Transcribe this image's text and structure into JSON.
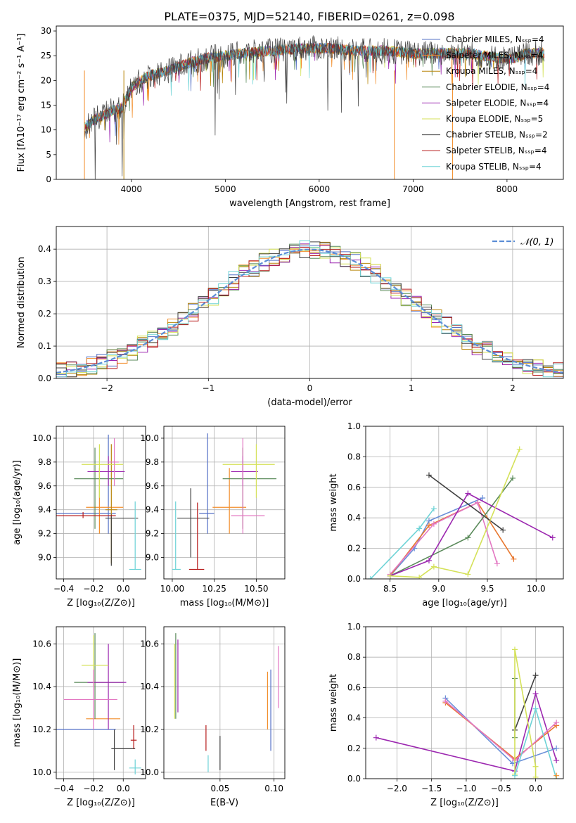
{
  "title": "PLATE=0375, MJD=52140, FIBERID=0261, z=0.098",
  "colors": {
    "chabrier_miles": "#5470c6",
    "salpeter_miles": "#f28e2b",
    "kroupa_miles": "#b8860b",
    "chabrier_elodie": "#5a8a5a",
    "salpeter_elodie": "#9c27b0",
    "kroupa_elodie": "#d4e157",
    "chabrier_stelib": "#404040",
    "salpeter_stelib": "#b71c1c",
    "kroupa_stelib": "#6dd3d6",
    "normal_fit": "#5b8dd6",
    "pink": "#e377c2",
    "blue": "#6a8fd8",
    "orange": "#e8772e"
  },
  "chart_data": [
    {
      "type": "line",
      "name": "spectrum",
      "xlabel": "wavelength [Angstrom, rest frame]",
      "ylabel": "Flux [fλ10⁻¹⁷ erg cm⁻² s⁻¹ A⁻¹]",
      "xlim": [
        3200,
        8600
      ],
      "ylim": [
        0,
        31
      ],
      "xticks": [
        "4000",
        "5000",
        "6000",
        "7000",
        "8000"
      ],
      "yticks": [
        "0",
        "5",
        "10",
        "15",
        "20",
        "25",
        "30"
      ],
      "continuum": {
        "x": [
          3500,
          3600,
          3700,
          3800,
          3900,
          4000,
          4100,
          4200,
          4400,
          4600,
          4800,
          5000,
          5200,
          5500,
          5800,
          6100,
          6400,
          6700,
          7000,
          7300,
          7600,
          7900,
          8100,
          8200,
          8400
        ],
        "y": [
          10.5,
          12,
          13,
          14,
          14.5,
          18.5,
          20,
          21,
          22,
          23.5,
          24.5,
          25,
          25.5,
          26,
          26.5,
          26.5,
          26,
          26,
          25.5,
          25.5,
          25.5,
          24.5,
          24.5,
          25.5,
          25.5
        ]
      },
      "legend_position": "upper right",
      "legend": [
        "Chabrier MILES, Nₛₛₚ=4",
        "Salpeter MILES, Nₛₛₚ=4",
        "Kroupa MILES, Nₛₛₚ=4",
        "Chabrier ELODIE, Nₛₛₚ=4",
        "Salpeter ELODIE, Nₛₛₚ=4",
        "Kroupa ELODIE, Nₛₛₚ=5",
        "Chabrier STELIB, Nₛₛₚ=2",
        "Salpeter STELIB, Nₛₛₚ=4",
        "Kroupa STELIB, Nₛₛₚ=4"
      ]
    },
    {
      "type": "line",
      "name": "residuals",
      "xlabel": "(data-model)/error",
      "ylabel": "Normed distribution",
      "xlim": [
        -2.5,
        2.5
      ],
      "ylim": [
        0,
        0.47
      ],
      "xticks": [
        "−2",
        "−1",
        "0",
        "1",
        "2"
      ],
      "yticks": [
        "0.0",
        "0.1",
        "0.2",
        "0.3",
        "0.4"
      ],
      "grid": true,
      "legend_position": "upper right",
      "legend": [
        "𝒩(0, 1)"
      ],
      "bin_width": 0.1
    },
    {
      "type": "scatter",
      "name": "age-vs-Z",
      "xlabel": "Z [log₁₀(Z/Z⊙)]",
      "ylabel": "age  [log₁₀(age/yr)]",
      "xlim": [
        -0.45,
        0.15
      ],
      "ylim": [
        8.82,
        10.1
      ],
      "xticks": [
        "−0.4",
        "−0.2",
        "0.0"
      ],
      "yticks": [
        "9.0",
        "9.2",
        "9.4",
        "9.6",
        "9.8",
        "10.0"
      ],
      "grid": true,
      "points": [
        {
          "s": "chabrier_miles",
          "x": -0.1,
          "y": 9.37,
          "xlo": -0.45,
          "xhi": -0.05,
          "ylo": 9.2,
          "yhi": 10.03
        },
        {
          "s": "salpeter_miles",
          "x": -0.16,
          "y": 9.42,
          "xlo": -0.25,
          "xhi": -0.0,
          "ylo": 9.2,
          "yhi": 9.75
        },
        {
          "s": "kroupa_miles",
          "x": -0.08,
          "y": 9.4,
          "xlo": -0.12,
          "xhi": -0.04,
          "ylo": 8.95,
          "yhi": 9.95
        },
        {
          "s": "chabrier_elodie",
          "x": -0.19,
          "y": 9.66,
          "xlo": -0.33,
          "xhi": -0.0,
          "ylo": 9.24,
          "yhi": 9.92
        },
        {
          "s": "salpeter_elodie",
          "x": -0.1,
          "y": 9.72,
          "xlo": -0.24,
          "xhi": 0.01,
          "ylo": 9.6,
          "yhi": 9.85
        },
        {
          "s": "kroupa_elodie",
          "x": -0.16,
          "y": 9.78,
          "xlo": -0.28,
          "xhi": -0.0,
          "ylo": 9.5,
          "yhi": 9.95
        },
        {
          "s": "chabrier_stelib",
          "x": -0.08,
          "y": 9.33,
          "xlo": -0.12,
          "xhi": 0.1,
          "ylo": 8.93,
          "yhi": 9.36
        },
        {
          "s": "salpeter_stelib",
          "x": -0.27,
          "y": 9.35,
          "xlo": -0.45,
          "xhi": -0.05,
          "ylo": 9.33,
          "yhi": 9.38
        },
        {
          "s": "kroupa_stelib",
          "x": 0.08,
          "y": 8.9,
          "xlo": 0.04,
          "xhi": 0.12,
          "ylo": 8.9,
          "yhi": 9.47
        },
        {
          "s": "pink",
          "x": -0.06,
          "y": 9.8,
          "xlo": -0.1,
          "xhi": -0.03,
          "ylo": 9.6,
          "yhi": 10.0
        }
      ]
    },
    {
      "type": "scatter",
      "name": "age-vs-mass",
      "xlabel": "mass [log₁₀(M/M⊙)]",
      "ylabel": "",
      "xlim": [
        9.95,
        10.67
      ],
      "ylim": [
        8.82,
        10.1
      ],
      "xticks": [
        "10.00",
        "10.25",
        "10.50"
      ],
      "yticks": [
        "9.0",
        "9.2",
        "9.4",
        "9.6",
        "9.8",
        "10.0"
      ],
      "grid": true,
      "points": [
        {
          "s": "chabrier_miles",
          "x": 10.21,
          "y": 9.37,
          "xlo": 10.16,
          "xhi": 10.25,
          "ylo": 9.2,
          "yhi": 10.04
        },
        {
          "s": "salpeter_miles",
          "x": 10.34,
          "y": 9.42,
          "xlo": 10.24,
          "xhi": 10.44,
          "ylo": 9.2,
          "yhi": 9.75
        },
        {
          "s": "chabrier_elodie",
          "x": 10.42,
          "y": 9.66,
          "xlo": 10.3,
          "xhi": 10.62,
          "ylo": 9.24,
          "yhi": 9.92
        },
        {
          "s": "salpeter_elodie",
          "x": 10.42,
          "y": 9.72,
          "xlo": 10.35,
          "xhi": 10.51,
          "ylo": 9.6,
          "yhi": 9.85
        },
        {
          "s": "kroupa_elodie",
          "x": 10.5,
          "y": 9.78,
          "xlo": 10.3,
          "xhi": 10.61,
          "ylo": 9.5,
          "yhi": 9.95
        },
        {
          "s": "chabrier_stelib",
          "x": 10.11,
          "y": 9.33,
          "xlo": 10.03,
          "xhi": 10.22,
          "ylo": 9.0,
          "yhi": 9.58
        },
        {
          "s": "salpeter_stelib",
          "x": 10.15,
          "y": 8.9,
          "xlo": 10.1,
          "xhi": 10.19,
          "ylo": 8.9,
          "yhi": 9.46
        },
        {
          "s": "kroupa_stelib",
          "x": 10.02,
          "y": 8.9,
          "xlo": 10.0,
          "xhi": 10.05,
          "ylo": 8.9,
          "yhi": 9.47
        },
        {
          "s": "pink",
          "x": 10.42,
          "y": 9.35,
          "xlo": 10.35,
          "xhi": 10.55,
          "ylo": 9.2,
          "yhi": 10.0
        }
      ]
    },
    {
      "type": "line",
      "name": "massweight-vs-age",
      "xlabel": "age  [log₁₀(age/yr)]",
      "ylabel": "mass weight",
      "xlim": [
        8.25,
        10.28
      ],
      "ylim": [
        0,
        1
      ],
      "xticks": [
        "8.5",
        "9.0",
        "9.5",
        "10.0"
      ],
      "yticks": [
        "0.0",
        "0.2",
        "0.4",
        "0.6",
        "0.8",
        "1.0"
      ],
      "grid": true,
      "series": [
        {
          "s": "kroupa_stelib",
          "x": [
            8.3,
            8.8,
            8.95
          ],
          "y": [
            0.0,
            0.33,
            0.46
          ]
        },
        {
          "s": "blue",
          "x": [
            8.5,
            8.75,
            8.9,
            9.45
          ],
          "y": [
            0.02,
            0.2,
            0.38,
            0.53
          ]
        },
        {
          "s": "orange",
          "x": [
            8.5,
            8.9,
            9.4,
            9.77
          ],
          "y": [
            0.02,
            0.35,
            0.5,
            0.13
          ]
        },
        {
          "s": "pink",
          "x": [
            8.5,
            8.95,
            9.4,
            9.6
          ],
          "y": [
            0.03,
            0.36,
            0.5,
            0.1
          ]
        },
        {
          "s": "chabrier_stelib",
          "x": [
            8.9,
            9.66
          ],
          "y": [
            0.68,
            0.32
          ]
        },
        {
          "s": "chabrier_elodie",
          "x": [
            8.5,
            9.3,
            9.76
          ],
          "y": [
            0.02,
            0.27,
            0.66
          ]
        },
        {
          "s": "salpeter_elodie",
          "x": [
            8.5,
            8.9,
            9.3,
            10.17
          ],
          "y": [
            0.02,
            0.12,
            0.56,
            0.27
          ]
        },
        {
          "s": "kroupa_elodie",
          "x": [
            8.5,
            8.8,
            8.95,
            9.3,
            9.83
          ],
          "y": [
            0.02,
            0.01,
            0.08,
            0.03,
            0.85
          ]
        }
      ]
    },
    {
      "type": "scatter",
      "name": "mass-vs-Z",
      "xlabel": "Z [log₁₀(Z/Z⊙)]",
      "ylabel": "mass [log₁₀(M/M⊙)]",
      "xlim": [
        -0.45,
        0.15
      ],
      "ylim": [
        9.97,
        10.68
      ],
      "xticks": [
        "−0.4",
        "−0.2",
        "0.0"
      ],
      "yticks": [
        "10.0",
        "10.2",
        "10.4",
        "10.6"
      ],
      "grid": true,
      "points": [
        {
          "s": "chabrier_miles",
          "x": -0.25,
          "y": 10.2,
          "xlo": -0.45,
          "xhi": -0.05,
          "ylo": 10.2,
          "yhi": 10.2
        },
        {
          "s": "salpeter_miles",
          "x": -0.17,
          "y": 10.25,
          "xlo": -0.25,
          "xhi": -0.02,
          "ylo": 10.25,
          "yhi": 10.25
        },
        {
          "s": "chabrier_elodie",
          "x": -0.19,
          "y": 10.42,
          "xlo": -0.33,
          "xhi": -0.0,
          "ylo": 10.25,
          "yhi": 10.65
        },
        {
          "s": "salpeter_elodie",
          "x": -0.1,
          "y": 10.42,
          "xlo": -0.24,
          "xhi": 0.02,
          "ylo": 10.2,
          "yhi": 10.6
        },
        {
          "s": "kroupa_elodie",
          "x": -0.2,
          "y": 10.5,
          "xlo": -0.28,
          "xhi": -0.1,
          "ylo": 10.4,
          "yhi": 10.64
        },
        {
          "s": "chabrier_stelib",
          "x": -0.06,
          "y": 10.11,
          "xlo": -0.08,
          "xhi": 0.08,
          "ylo": 10.01,
          "yhi": 10.2
        },
        {
          "s": "salpeter_stelib",
          "x": 0.07,
          "y": 10.15,
          "xlo": 0.05,
          "xhi": 0.09,
          "ylo": 10.11,
          "yhi": 10.22
        },
        {
          "s": "kroupa_stelib",
          "x": 0.08,
          "y": 10.02,
          "xlo": 0.04,
          "xhi": 0.12,
          "ylo": 9.99,
          "yhi": 10.06
        },
        {
          "s": "pink",
          "x": -0.2,
          "y": 10.34,
          "xlo": -0.4,
          "xhi": -0.04,
          "ylo": 10.2,
          "yhi": 10.48
        }
      ]
    },
    {
      "type": "scatter",
      "name": "mass-vs-EBV",
      "xlabel": "E(B-V)",
      "ylabel": "",
      "xlim": [
        -0.002,
        0.11
      ],
      "ylim": [
        9.97,
        10.68
      ],
      "xticks": [
        "0.05",
        "0.10"
      ],
      "yticks": [
        "10.0",
        "10.2",
        "10.4",
        "10.6"
      ],
      "grid": true,
      "bars": [
        {
          "s": "kroupa_elodie",
          "x": 0.008,
          "ylo": 10.25,
          "yhi": 10.6
        },
        {
          "s": "chabrier_elodie",
          "x": 0.009,
          "ylo": 10.25,
          "yhi": 10.65
        },
        {
          "s": "salpeter_elodie",
          "x": 0.011,
          "ylo": 10.28,
          "yhi": 10.62
        },
        {
          "s": "salpeter_stelib",
          "x": 0.037,
          "ylo": 10.1,
          "yhi": 10.22
        },
        {
          "s": "kroupa_stelib",
          "x": 0.039,
          "ylo": 10.0,
          "yhi": 10.08
        },
        {
          "s": "chabrier_stelib",
          "x": 0.05,
          "ylo": 10.01,
          "yhi": 10.17
        },
        {
          "s": "salpeter_miles",
          "x": 0.094,
          "ylo": 10.2,
          "yhi": 10.47
        },
        {
          "s": "chabrier_miles",
          "x": 0.097,
          "ylo": 10.1,
          "yhi": 10.48
        },
        {
          "s": "pink",
          "x": 0.104,
          "ylo": 10.3,
          "yhi": 10.59
        }
      ]
    },
    {
      "type": "line",
      "name": "massweight-vs-Z",
      "xlabel": "Z [log₁₀(Z/Z⊙)]",
      "ylabel": "mass weight",
      "xlim": [
        -2.45,
        0.4
      ],
      "ylim": [
        0,
        1
      ],
      "xticks": [
        "−2.0",
        "−1.5",
        "−1.0",
        "−0.5",
        "0.0"
      ],
      "yticks": [
        "0.0",
        "0.2",
        "0.4",
        "0.6",
        "0.8",
        "1.0"
      ],
      "grid": true,
      "series": [
        {
          "s": "salpeter_elodie",
          "x": [
            -2.3,
            -0.3,
            0.0,
            0.3
          ],
          "y": [
            0.27,
            0.05,
            0.56,
            0.12
          ]
        },
        {
          "s": "blue",
          "x": [
            -1.3,
            -0.33,
            0.3
          ],
          "y": [
            0.53,
            0.1,
            0.2
          ]
        },
        {
          "s": "orange",
          "x": [
            -1.3,
            -0.3,
            0.3
          ],
          "y": [
            0.5,
            0.13,
            0.35
          ]
        },
        {
          "s": "pink",
          "x": [
            -1.3,
            -0.3,
            0.3
          ],
          "y": [
            0.51,
            0.12,
            0.37
          ]
        },
        {
          "s": "chabrier_stelib",
          "x": [
            -0.3,
            0.0
          ],
          "y": [
            0.32,
            0.68
          ]
        },
        {
          "s": "chabrier_elodie",
          "x": [
            -0.3,
            -0.3
          ],
          "y": [
            0.27,
            0.66
          ]
        },
        {
          "s": "kroupa_elodie",
          "x": [
            -0.3,
            -0.3,
            0.0,
            0.0
          ],
          "y": [
            0.03,
            0.85,
            0.08,
            0.01
          ]
        },
        {
          "s": "kroupa_stelib",
          "x": [
            -0.3,
            0.0,
            0.3
          ],
          "y": [
            0.02,
            0.46,
            0.0
          ]
        },
        {
          "s": "salpeter_miles",
          "x": [
            0.3
          ],
          "y": [
            0.02
          ]
        }
      ]
    }
  ]
}
